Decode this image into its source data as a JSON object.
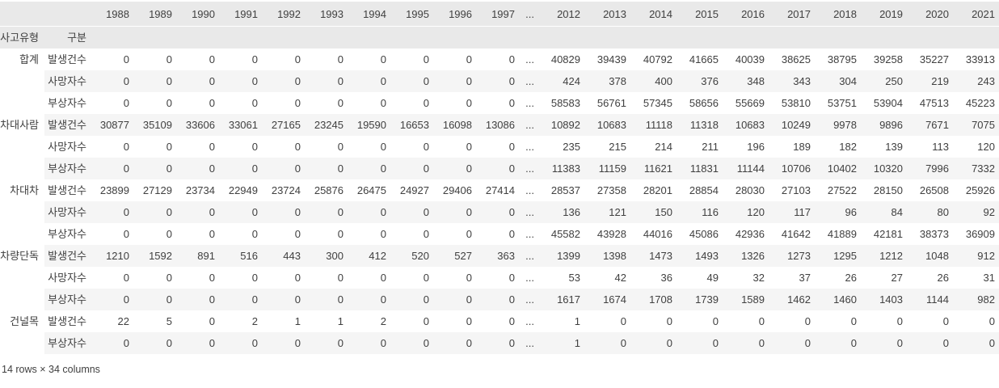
{
  "colors": {
    "header_bg": "#e9e9e9",
    "stripe_bg": "#f5f5f5",
    "body_text": "#404040",
    "header_text": "#1a1a1a",
    "page_bg": "#ffffff"
  },
  "chart_data": {
    "type": "table",
    "title": "",
    "index_names": [
      "사고유형",
      "구분"
    ],
    "columns": [
      "1988",
      "1989",
      "1990",
      "1991",
      "1992",
      "1993",
      "1994",
      "1995",
      "1996",
      "1997",
      "...",
      "2012",
      "2013",
      "2014",
      "2015",
      "2016",
      "2017",
      "2018",
      "2019",
      "2020",
      "2021"
    ],
    "rows": [
      {
        "group": "합계",
        "category": "발생건수",
        "values": [
          "0",
          "0",
          "0",
          "0",
          "0",
          "0",
          "0",
          "0",
          "0",
          "0",
          "...",
          "40829",
          "39439",
          "40792",
          "41665",
          "40039",
          "38625",
          "38795",
          "39258",
          "35227",
          "33913"
        ]
      },
      {
        "group": "합계",
        "category": "사망자수",
        "values": [
          "0",
          "0",
          "0",
          "0",
          "0",
          "0",
          "0",
          "0",
          "0",
          "0",
          "...",
          "424",
          "378",
          "400",
          "376",
          "348",
          "343",
          "304",
          "250",
          "219",
          "243"
        ]
      },
      {
        "group": "합계",
        "category": "부상자수",
        "values": [
          "0",
          "0",
          "0",
          "0",
          "0",
          "0",
          "0",
          "0",
          "0",
          "0",
          "...",
          "58583",
          "56761",
          "57345",
          "58656",
          "55669",
          "53810",
          "53751",
          "53904",
          "47513",
          "45223"
        ]
      },
      {
        "group": "차대사람",
        "category": "발생건수",
        "values": [
          "30877",
          "35109",
          "33606",
          "33061",
          "27165",
          "23245",
          "19590",
          "16653",
          "16098",
          "13086",
          "...",
          "10892",
          "10683",
          "11118",
          "11318",
          "10683",
          "10249",
          "9978",
          "9896",
          "7671",
          "7075"
        ]
      },
      {
        "group": "차대사람",
        "category": "사망자수",
        "values": [
          "0",
          "0",
          "0",
          "0",
          "0",
          "0",
          "0",
          "0",
          "0",
          "0",
          "...",
          "235",
          "215",
          "214",
          "211",
          "196",
          "189",
          "182",
          "139",
          "113",
          "120"
        ]
      },
      {
        "group": "차대사람",
        "category": "부상자수",
        "values": [
          "0",
          "0",
          "0",
          "0",
          "0",
          "0",
          "0",
          "0",
          "0",
          "0",
          "...",
          "11383",
          "11159",
          "11621",
          "11831",
          "11144",
          "10706",
          "10402",
          "10320",
          "7996",
          "7332"
        ]
      },
      {
        "group": "차대차",
        "category": "발생건수",
        "values": [
          "23899",
          "27129",
          "23734",
          "22949",
          "23724",
          "25876",
          "26475",
          "24927",
          "29406",
          "27414",
          "...",
          "28537",
          "27358",
          "28201",
          "28854",
          "28030",
          "27103",
          "27522",
          "28150",
          "26508",
          "25926"
        ]
      },
      {
        "group": "차대차",
        "category": "사망자수",
        "values": [
          "0",
          "0",
          "0",
          "0",
          "0",
          "0",
          "0",
          "0",
          "0",
          "0",
          "...",
          "136",
          "121",
          "150",
          "116",
          "120",
          "117",
          "96",
          "84",
          "80",
          "92"
        ]
      },
      {
        "group": "차대차",
        "category": "부상자수",
        "values": [
          "0",
          "0",
          "0",
          "0",
          "0",
          "0",
          "0",
          "0",
          "0",
          "0",
          "...",
          "45582",
          "43928",
          "44016",
          "45086",
          "42936",
          "41642",
          "41889",
          "42181",
          "38373",
          "36909"
        ]
      },
      {
        "group": "차량단독",
        "category": "발생건수",
        "values": [
          "1210",
          "1592",
          "891",
          "516",
          "443",
          "300",
          "412",
          "520",
          "527",
          "363",
          "...",
          "1399",
          "1398",
          "1473",
          "1493",
          "1326",
          "1273",
          "1295",
          "1212",
          "1048",
          "912"
        ]
      },
      {
        "group": "차량단독",
        "category": "사망자수",
        "values": [
          "0",
          "0",
          "0",
          "0",
          "0",
          "0",
          "0",
          "0",
          "0",
          "0",
          "...",
          "53",
          "42",
          "36",
          "49",
          "32",
          "37",
          "26",
          "27",
          "26",
          "31"
        ]
      },
      {
        "group": "차량단독",
        "category": "부상자수",
        "values": [
          "0",
          "0",
          "0",
          "0",
          "0",
          "0",
          "0",
          "0",
          "0",
          "0",
          "...",
          "1617",
          "1674",
          "1708",
          "1739",
          "1589",
          "1462",
          "1460",
          "1403",
          "1144",
          "982"
        ]
      },
      {
        "group": "건널목",
        "category": "발생건수",
        "values": [
          "22",
          "5",
          "0",
          "2",
          "1",
          "1",
          "2",
          "0",
          "0",
          "0",
          "...",
          "1",
          "0",
          "0",
          "0",
          "0",
          "0",
          "0",
          "0",
          "0",
          "0"
        ]
      },
      {
        "group": "건널목",
        "category": "부상자수",
        "values": [
          "0",
          "0",
          "0",
          "0",
          "0",
          "0",
          "0",
          "0",
          "0",
          "0",
          "...",
          "1",
          "0",
          "0",
          "0",
          "0",
          "0",
          "0",
          "0",
          "0",
          "0"
        ]
      }
    ],
    "footer": "14 rows × 34 columns",
    "layout": {
      "grid": false,
      "row_striping": true,
      "index_col_widths": [
        55,
        59
      ],
      "year_col_width_left": 53,
      "ellipsis_col_width": 24,
      "year_col_width_right": 57
    }
  }
}
